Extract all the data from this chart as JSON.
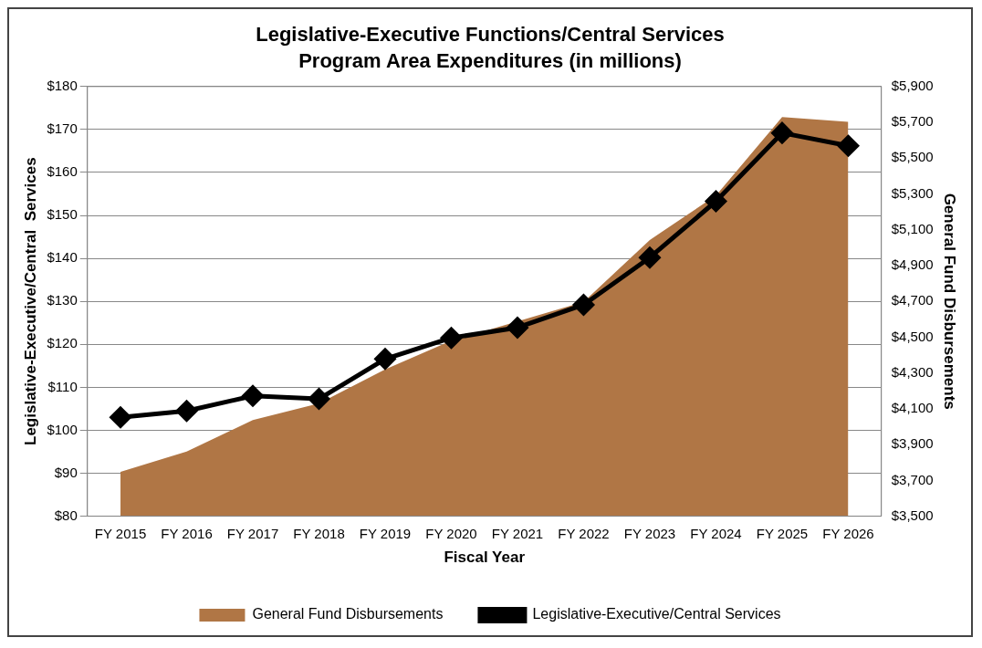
{
  "chart_data": {
    "type": "line",
    "title": "Legislative-Executive Functions/Central Services",
    "subtitle": "Program Area Expenditures (in millions)",
    "xlabel": "Fiscal Year",
    "ylabel": "Legislative-Executive/Central  Services",
    "y2label": "General Fund Disbursements",
    "categories": [
      "FY 2015",
      "FY 2016",
      "FY 2017",
      "FY 2018",
      "FY 2019",
      "FY 2020",
      "FY 2021",
      "FY 2022",
      "FY 2023",
      "FY 2024",
      "FY 2025",
      "FY 2026"
    ],
    "series": [
      {
        "name": "General Fund Disbursements",
        "type": "area",
        "axis": "y2",
        "color": "#b07645",
        "values": [
          3748,
          3861,
          4037,
          4130,
          4320,
          4480,
          null,
          4697,
          5043,
          5291,
          5730,
          5703
        ]
      },
      {
        "name": "Legislative-Executive/Central Services",
        "color": "#000000",
        "marker": "diamond",
        "values": [
          103,
          104.5,
          108,
          107.3,
          116.6,
          121.5,
          123.9,
          129.2,
          140.2,
          153.3,
          169.2,
          166.2
        ]
      }
    ],
    "ylim": [
      80,
      180
    ],
    "yticks": [
      {
        "value": 80,
        "label": "$80"
      },
      {
        "value": 90,
        "label": "$90"
      },
      {
        "value": 100,
        "label": "$100"
      },
      {
        "value": 110,
        "label": "$110"
      },
      {
        "value": 120,
        "label": "$120"
      },
      {
        "value": 130,
        "label": "$130"
      },
      {
        "value": 140,
        "label": "$140"
      },
      {
        "value": 150,
        "label": "$150"
      },
      {
        "value": 160,
        "label": "$160"
      },
      {
        "value": 170,
        "label": "$170"
      },
      {
        "value": 180,
        "label": "$180"
      }
    ],
    "y2lim": [
      3500,
      5900
    ],
    "y2ticks": [
      {
        "value": 3500,
        "label": "$3,500"
      },
      {
        "value": 3700,
        "label": "$3,700"
      },
      {
        "value": 3900,
        "label": "$3,900"
      },
      {
        "value": 4100,
        "label": "$4,100"
      },
      {
        "value": 4300,
        "label": "$4,300"
      },
      {
        "value": 4500,
        "label": "$4,500"
      },
      {
        "value": 4700,
        "label": "$4,700"
      },
      {
        "value": 4900,
        "label": "$4,900"
      },
      {
        "value": 5100,
        "label": "$5,100"
      },
      {
        "value": 5300,
        "label": "$5,300"
      },
      {
        "value": 5500,
        "label": "$5,500"
      },
      {
        "value": 5700,
        "label": "$5,700"
      },
      {
        "value": 5900,
        "label": "$5,900"
      }
    ],
    "grid": "y",
    "legend": "bottom",
    "line_style": "solid"
  }
}
